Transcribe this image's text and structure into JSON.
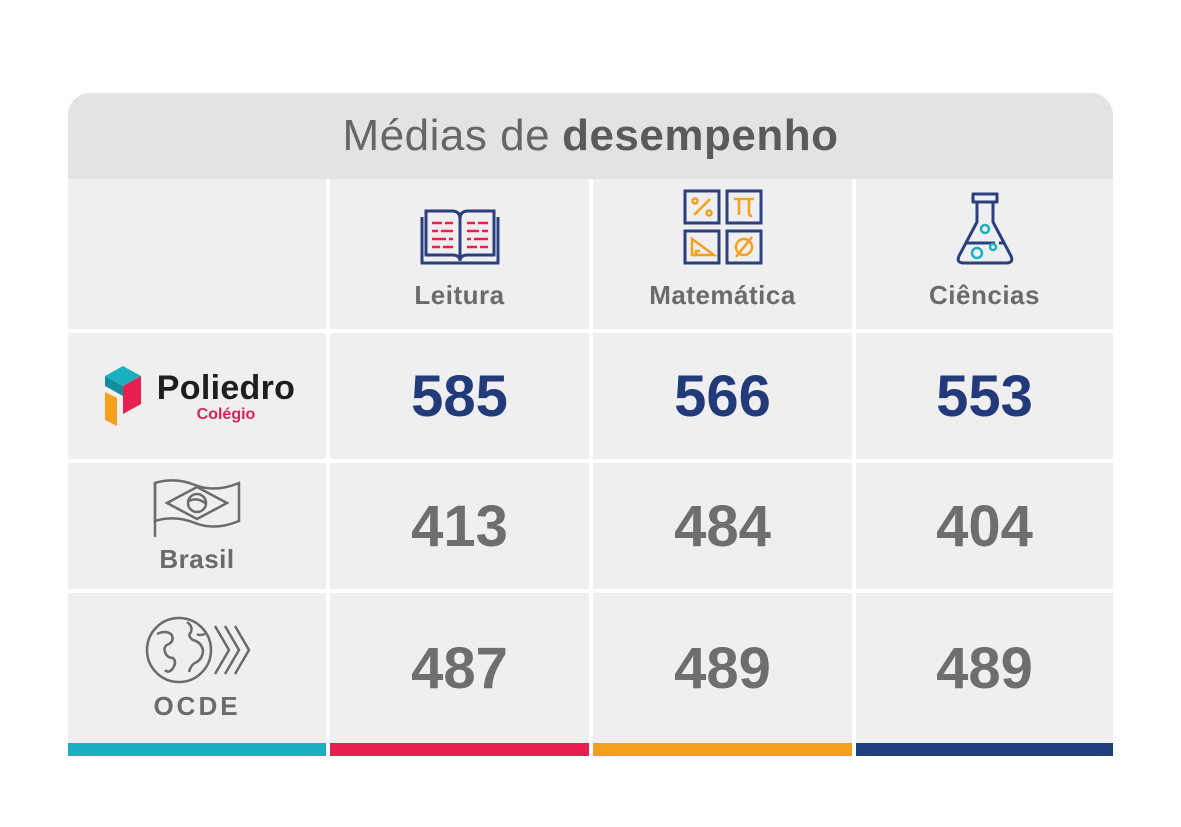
{
  "title": {
    "light": "Médias de",
    "bold": "desempenho"
  },
  "columns": [
    {
      "label": "Leitura",
      "icon": "book-icon",
      "color": "#e8204f"
    },
    {
      "label": "Matemática",
      "icon": "math-symbols-icon",
      "color": "#f4a01c"
    },
    {
      "label": "Ciências",
      "icon": "flask-icon",
      "color": "#1f3e7f"
    }
  ],
  "rows": [
    {
      "name": "Poliedro",
      "sub": "Colégio",
      "icon": "poliedro-logo",
      "values": [
        "585",
        "566",
        "553"
      ]
    },
    {
      "name": "Brasil",
      "icon": "brazil-flag-icon",
      "values": [
        "413",
        "484",
        "404"
      ]
    },
    {
      "name": "OCDE",
      "icon": "ocde-globe-icon",
      "values": [
        "487",
        "489",
        "489"
      ]
    }
  ],
  "first_column_color": "#1bb0c0",
  "colors": {
    "poliedro_value": "#233a7a",
    "other_value": "#6e6e6e",
    "icon_blue": "#2b3f7e"
  }
}
